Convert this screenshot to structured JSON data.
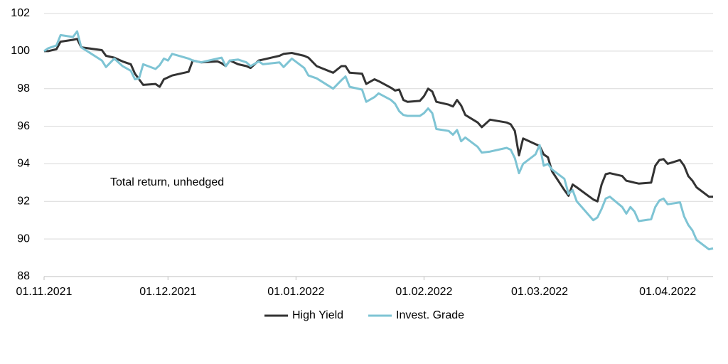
{
  "chart_data": {
    "type": "line",
    "annotation": "Total return, unhedged",
    "x": [
      "2021-11-01",
      "2021-11-02",
      "2021-11-04",
      "2021-11-05",
      "2021-11-08",
      "2021-11-09",
      "2021-11-10",
      "2021-11-15",
      "2021-11-16",
      "2021-11-18",
      "2021-11-20",
      "2021-11-22",
      "2021-11-23",
      "2021-11-24",
      "2021-11-25",
      "2021-11-28",
      "2021-11-29",
      "2021-11-30",
      "2021-12-01",
      "2021-12-02",
      "2021-12-06",
      "2021-12-07",
      "2021-12-09",
      "2021-12-13",
      "2021-12-14",
      "2021-12-15",
      "2021-12-16",
      "2021-12-18",
      "2021-12-20",
      "2021-12-21",
      "2021-12-23",
      "2021-12-24",
      "2021-12-28",
      "2021-12-29",
      "2021-12-31",
      "2022-01-03",
      "2022-01-04",
      "2022-01-06",
      "2022-01-10",
      "2022-01-12",
      "2022-01-13",
      "2022-01-14",
      "2022-01-17",
      "2022-01-18",
      "2022-01-20",
      "2022-01-21",
      "2022-01-24",
      "2022-01-25",
      "2022-01-26",
      "2022-01-27",
      "2022-01-28",
      "2022-01-31",
      "2022-02-01",
      "2022-02-02",
      "2022-02-03",
      "2022-02-04",
      "2022-02-07",
      "2022-02-08",
      "2022-02-09",
      "2022-02-10",
      "2022-02-11",
      "2022-02-14",
      "2022-02-15",
      "2022-02-17",
      "2022-02-21",
      "2022-02-22",
      "2022-02-23",
      "2022-02-24",
      "2022-02-25",
      "2022-02-28",
      "2022-03-01",
      "2022-03-02",
      "2022-03-03",
      "2022-03-04",
      "2022-03-07",
      "2022-03-08",
      "2022-03-09",
      "2022-03-10",
      "2022-03-14",
      "2022-03-15",
      "2022-03-16",
      "2022-03-17",
      "2022-03-18",
      "2022-03-21",
      "2022-03-22",
      "2022-03-23",
      "2022-03-24",
      "2022-03-25",
      "2022-03-28",
      "2022-03-29",
      "2022-03-30",
      "2022-03-31",
      "2022-04-01",
      "2022-04-04",
      "2022-04-05",
      "2022-04-06",
      "2022-04-07",
      "2022-04-08",
      "2022-04-11",
      "2022-04-12"
    ],
    "series": [
      {
        "name": "High Yield",
        "color": "#333333",
        "values": [
          100.0,
          100.0,
          100.1,
          100.5,
          100.6,
          100.65,
          100.2,
          100.05,
          99.75,
          99.65,
          99.45,
          99.3,
          98.8,
          98.5,
          98.2,
          98.25,
          98.1,
          98.5,
          98.6,
          98.7,
          98.9,
          99.5,
          99.4,
          99.45,
          99.35,
          99.2,
          99.5,
          99.3,
          99.2,
          99.1,
          99.5,
          99.55,
          99.75,
          99.85,
          99.9,
          99.75,
          99.65,
          99.2,
          98.85,
          99.2,
          99.2,
          98.85,
          98.8,
          98.25,
          98.5,
          98.4,
          98.05,
          97.9,
          97.95,
          97.4,
          97.3,
          97.35,
          97.6,
          98.0,
          97.85,
          97.3,
          97.15,
          97.05,
          97.4,
          97.1,
          96.6,
          96.2,
          95.95,
          96.35,
          96.2,
          96.1,
          95.75,
          94.45,
          95.35,
          95.05,
          94.95,
          94.5,
          94.35,
          93.6,
          92.6,
          92.3,
          92.9,
          92.75,
          92.1,
          92.0,
          92.9,
          93.45,
          93.5,
          93.35,
          93.1,
          93.05,
          93.0,
          92.95,
          93.0,
          93.9,
          94.2,
          94.25,
          94.0,
          94.2,
          93.9,
          93.35,
          93.1,
          92.75,
          92.25,
          92.25
        ]
      },
      {
        "name": "Invest. Grade",
        "color": "#7ec4d4",
        "values": [
          100.0,
          100.15,
          100.3,
          100.85,
          100.75,
          101.05,
          100.2,
          99.5,
          99.15,
          99.6,
          99.2,
          98.95,
          98.5,
          98.55,
          99.3,
          99.05,
          99.25,
          99.6,
          99.5,
          99.85,
          99.6,
          99.5,
          99.4,
          99.6,
          99.65,
          99.2,
          99.5,
          99.55,
          99.4,
          99.2,
          99.45,
          99.3,
          99.4,
          99.15,
          99.6,
          99.1,
          98.7,
          98.55,
          98.0,
          98.45,
          98.65,
          98.1,
          97.95,
          97.3,
          97.55,
          97.75,
          97.4,
          97.2,
          96.8,
          96.6,
          96.55,
          96.55,
          96.7,
          96.95,
          96.7,
          95.85,
          95.75,
          95.55,
          95.8,
          95.2,
          95.4,
          94.9,
          94.6,
          94.65,
          94.85,
          94.75,
          94.3,
          93.5,
          94.0,
          94.5,
          95.0,
          93.9,
          94.0,
          93.7,
          93.2,
          92.4,
          92.6,
          92.0,
          91.0,
          91.15,
          91.6,
          92.15,
          92.25,
          91.7,
          91.35,
          91.7,
          91.45,
          90.95,
          91.05,
          91.7,
          92.05,
          92.15,
          91.85,
          91.95,
          91.2,
          90.75,
          90.45,
          89.95,
          89.45,
          89.5
        ]
      }
    ],
    "xlim": [
      "2021-11-01",
      "2022-04-12"
    ],
    "xticks": [
      {
        "value": "2021-11-01",
        "label": "01.11.2021"
      },
      {
        "value": "2021-12-01",
        "label": "01.12.2021"
      },
      {
        "value": "2022-01-01",
        "label": "01.01.2022"
      },
      {
        "value": "2022-02-01",
        "label": "01.02.2022"
      },
      {
        "value": "2022-03-01",
        "label": "01.03.2022"
      },
      {
        "value": "2022-04-01",
        "label": "01.04.2022"
      }
    ],
    "ylim": [
      88,
      102
    ],
    "yticks": [
      88,
      90,
      92,
      94,
      96,
      98,
      100,
      102
    ],
    "grid": true,
    "legend": "bottom"
  }
}
